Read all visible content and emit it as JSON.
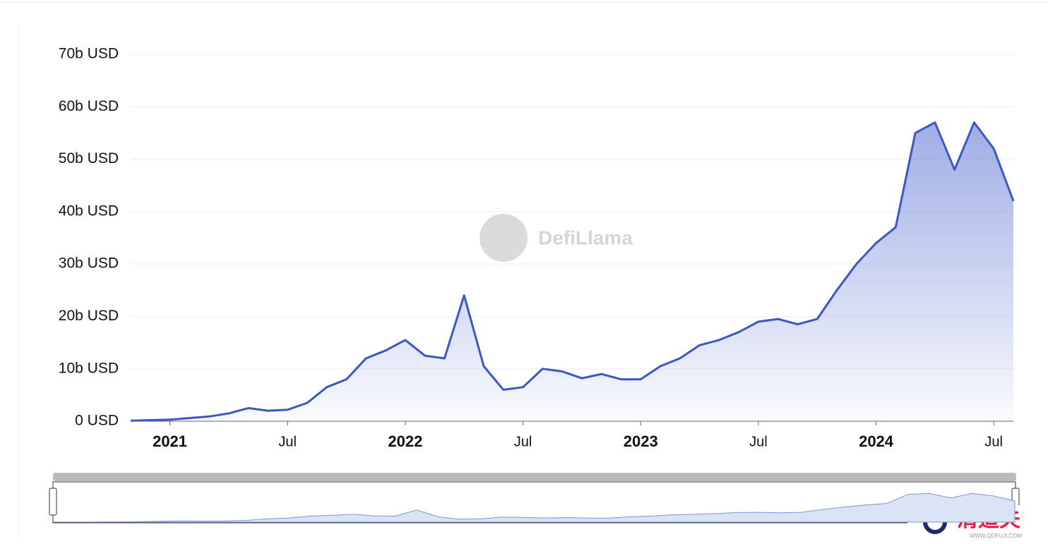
{
  "chart_data": {
    "type": "area",
    "x": [
      "2020-11",
      "2020-12",
      "2021-01",
      "2021-02",
      "2021-03",
      "2021-04",
      "2021-05",
      "2021-06",
      "2021-07",
      "2021-08",
      "2021-09",
      "2021-10",
      "2021-11",
      "2021-12",
      "2022-01",
      "2022-02",
      "2022-03",
      "2022-04",
      "2022-05",
      "2022-06",
      "2022-07",
      "2022-08",
      "2022-09",
      "2022-10",
      "2022-11",
      "2022-12",
      "2023-01",
      "2023-02",
      "2023-03",
      "2023-04",
      "2023-05",
      "2023-06",
      "2023-07",
      "2023-08",
      "2023-09",
      "2023-10",
      "2023-11",
      "2023-12",
      "2024-01",
      "2024-02",
      "2024-03",
      "2024-04",
      "2024-05",
      "2024-06",
      "2024-07",
      "2024-08"
    ],
    "values": [
      0.1,
      0.2,
      0.3,
      0.6,
      0.9,
      1.5,
      2.5,
      2.0,
      2.2,
      3.5,
      6.5,
      8.0,
      12.0,
      13.5,
      15.5,
      12.5,
      12.0,
      24.0,
      10.5,
      6.0,
      6.5,
      10.0,
      9.5,
      8.2,
      9.0,
      8.0,
      8.0,
      10.5,
      12.0,
      14.5,
      15.5,
      17.0,
      19.0,
      19.5,
      18.5,
      19.5,
      25.0,
      30.0,
      34.0,
      37.0,
      55.0,
      57.0,
      48.0,
      57.0,
      52.0,
      42.0
    ],
    "color": "#3b57c4",
    "xlim": [
      "2020-11",
      "2024-08"
    ],
    "xticks": [
      {
        "value": "2021-01",
        "label": "2021"
      },
      {
        "value": "2021-07",
        "label": "Jul"
      },
      {
        "value": "2022-01",
        "label": "2022"
      },
      {
        "value": "2022-07",
        "label": "Jul"
      },
      {
        "value": "2023-01",
        "label": "2023"
      },
      {
        "value": "2023-07",
        "label": "Jul"
      },
      {
        "value": "2024-01",
        "label": "2024"
      },
      {
        "value": "2024-07",
        "label": "Jul"
      }
    ],
    "ylim": [
      0,
      70
    ],
    "yticks": [
      {
        "value": 0,
        "label": "0 USD"
      },
      {
        "value": 10,
        "label": "10b USD"
      },
      {
        "value": 20,
        "label": "20b USD"
      },
      {
        "value": 30,
        "label": "30b USD"
      },
      {
        "value": 40,
        "label": "40b USD"
      },
      {
        "value": 50,
        "label": "50b USD"
      },
      {
        "value": 60,
        "label": "60b USD"
      },
      {
        "value": 70,
        "label": "70b USD"
      }
    ],
    "grid": true,
    "watermark": "DefiLlama",
    "corner_logo": "清道夫",
    "corner_url": "WWW.QDFUJI.COM"
  }
}
